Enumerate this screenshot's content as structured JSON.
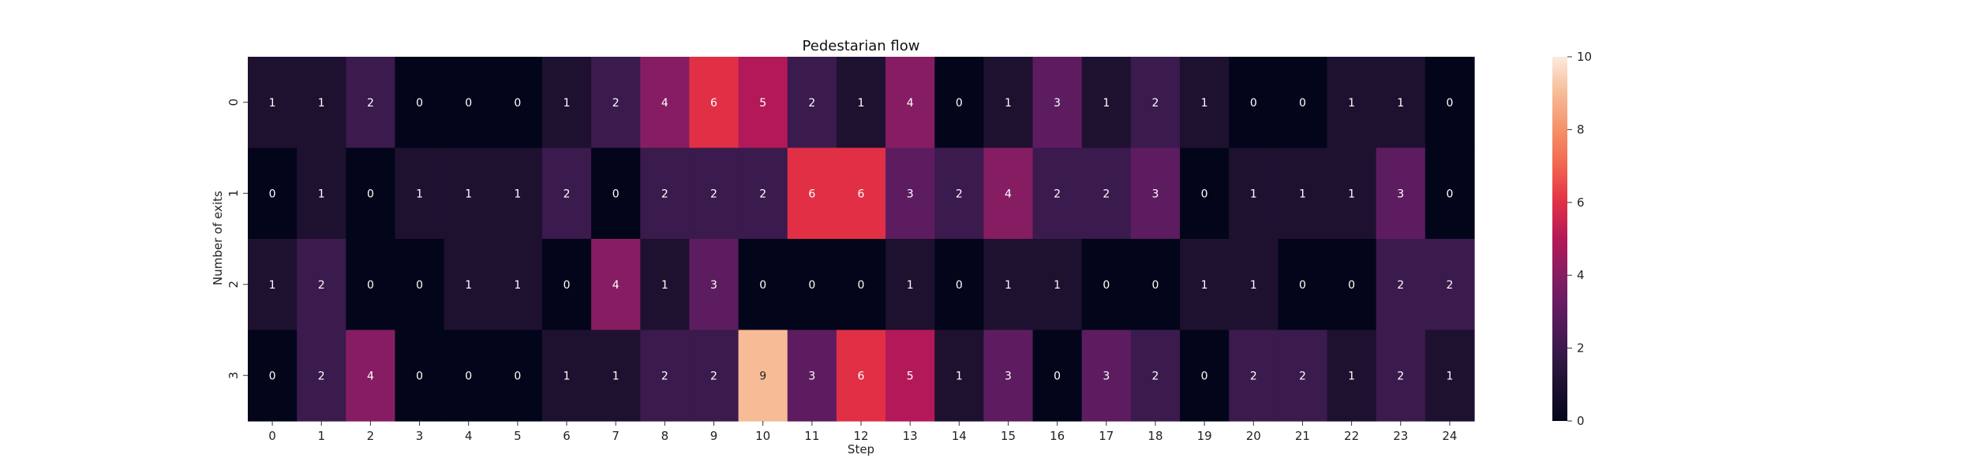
{
  "chart_data": {
    "type": "heatmap",
    "title": "Pedestarian flow",
    "xlabel": "Step",
    "ylabel": "Number of exits",
    "x_categories": [
      "0",
      "1",
      "2",
      "3",
      "4",
      "5",
      "6",
      "7",
      "8",
      "9",
      "10",
      "11",
      "12",
      "13",
      "14",
      "15",
      "16",
      "17",
      "18",
      "19",
      "20",
      "21",
      "22",
      "23",
      "24"
    ],
    "y_categories": [
      "0",
      "1",
      "2",
      "3"
    ],
    "values": [
      [
        1,
        1,
        2,
        0,
        0,
        0,
        1,
        2,
        4,
        6,
        5,
        2,
        1,
        4,
        0,
        1,
        3,
        1,
        2,
        1,
        0,
        0,
        1,
        1,
        0
      ],
      [
        0,
        1,
        0,
        1,
        1,
        1,
        2,
        0,
        2,
        2,
        2,
        6,
        6,
        3,
        2,
        4,
        2,
        2,
        3,
        0,
        1,
        1,
        1,
        3,
        0
      ],
      [
        1,
        2,
        0,
        0,
        1,
        1,
        0,
        4,
        1,
        3,
        0,
        0,
        0,
        1,
        0,
        1,
        1,
        0,
        0,
        1,
        1,
        0,
        0,
        2,
        2
      ],
      [
        0,
        2,
        4,
        0,
        0,
        0,
        1,
        1,
        2,
        2,
        9,
        3,
        6,
        5,
        1,
        3,
        0,
        3,
        2,
        0,
        2,
        2,
        1,
        2,
        1
      ]
    ],
    "colorbar": {
      "min": 0,
      "max": 10,
      "ticks": [
        "0",
        "2",
        "4",
        "6",
        "8",
        "10"
      ],
      "colormap": "rocket",
      "location": "right"
    },
    "legend": "none",
    "grid": false
  }
}
